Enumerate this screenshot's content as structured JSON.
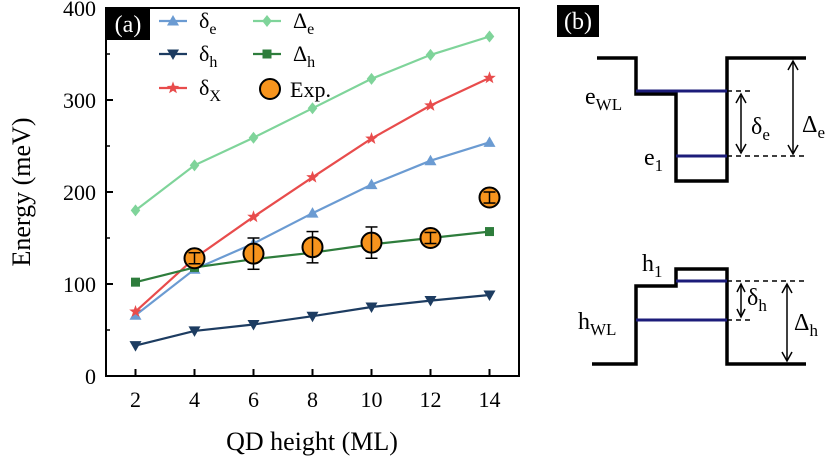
{
  "panels": {
    "a_label": "(a)",
    "b_label": "(b)"
  },
  "chart_data": {
    "type": "line",
    "xlabel": "QD height (ML)",
    "ylabel": "Energy (meV)",
    "xlim": [
      1,
      15
    ],
    "ylim": [
      0,
      400
    ],
    "xticks": [
      2,
      4,
      6,
      8,
      10,
      12,
      14
    ],
    "yticks": [
      0,
      100,
      200,
      300,
      400
    ],
    "legend_position": "top-left",
    "series": [
      {
        "key": "delta_e",
        "name": "δe",
        "sym": "δ",
        "sub": "e",
        "color": "#6b9bd2",
        "marker": "triangle-up",
        "x": [
          2,
          4,
          6,
          8,
          10,
          12,
          14
        ],
        "y": [
          66,
          116,
          144,
          177,
          208,
          234,
          254
        ]
      },
      {
        "key": "delta_h",
        "name": "δh",
        "sym": "δ",
        "sub": "h",
        "color": "#1d3c61",
        "marker": "triangle-down",
        "x": [
          2,
          4,
          6,
          8,
          10,
          12,
          14
        ],
        "y": [
          33,
          49,
          56,
          65,
          75,
          82,
          88
        ]
      },
      {
        "key": "delta_x",
        "name": "δX",
        "sym": "δ",
        "sub": "X",
        "color": "#e84c4c",
        "marker": "star",
        "x": [
          2,
          4,
          6,
          8,
          10,
          12,
          14
        ],
        "y": [
          70,
          128,
          173,
          216,
          258,
          294,
          324
        ]
      },
      {
        "key": "Delta_e",
        "name": "Δe",
        "sym": "Δ",
        "sub": "e",
        "color": "#7fd49a",
        "marker": "diamond",
        "x": [
          2,
          4,
          6,
          8,
          10,
          12,
          14
        ],
        "y": [
          180,
          229,
          259,
          291,
          323,
          349,
          369
        ]
      },
      {
        "key": "Delta_h",
        "name": "Δh",
        "sym": "Δ",
        "sub": "h",
        "color": "#2e7d3c",
        "marker": "square",
        "x": [
          2,
          4,
          6,
          8,
          10,
          12,
          14
        ],
        "y": [
          102,
          118,
          127,
          134,
          143,
          150,
          157
        ]
      }
    ],
    "experiment": {
      "name": "Exp.",
      "color": "#f7941d",
      "edge": "#000000",
      "x": [
        4,
        6,
        8,
        10,
        12,
        14
      ],
      "y": [
        128,
        133,
        140,
        145,
        150,
        194
      ],
      "err": [
        6,
        17,
        17,
        17,
        6,
        6
      ]
    }
  },
  "diagram": {
    "electron": {
      "wl": "e",
      "wl_sub": "WL",
      "level": "e",
      "level_sub": "1",
      "small": "δ",
      "small_sub": "e",
      "big": "Δ",
      "big_sub": "e"
    },
    "hole": {
      "wl": "h",
      "wl_sub": "WL",
      "level": "h",
      "level_sub": "1",
      "small": "δ",
      "small_sub": "h",
      "big": "Δ",
      "big_sub": "h"
    }
  }
}
